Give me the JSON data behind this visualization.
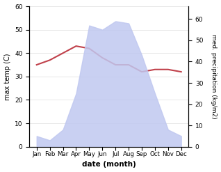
{
  "months": [
    "Jan",
    "Feb",
    "Mar",
    "Apr",
    "May",
    "Jun",
    "Jul",
    "Aug",
    "Sep",
    "Oct",
    "Nov",
    "Dec"
  ],
  "temperature": [
    35,
    37,
    40,
    43,
    42,
    38,
    35,
    35,
    32,
    33,
    33,
    32
  ],
  "precipitation": [
    5,
    3,
    8,
    25,
    57,
    55,
    59,
    58,
    43,
    25,
    8,
    5
  ],
  "temp_color": "#c0404a",
  "precip_fill_color": "#c0c8f0",
  "temp_ylim": [
    0,
    60
  ],
  "precip_ylim": [
    0,
    66
  ],
  "temp_yticks": [
    0,
    10,
    20,
    30,
    40,
    50,
    60
  ],
  "precip_yticks": [
    0,
    10,
    20,
    30,
    40,
    50,
    60
  ],
  "xlabel": "date (month)",
  "ylabel_left": "max temp (C)",
  "ylabel_right": "med. precipitation (kg/m2)",
  "background_color": "#ffffff",
  "grid_color": "#dddddd"
}
